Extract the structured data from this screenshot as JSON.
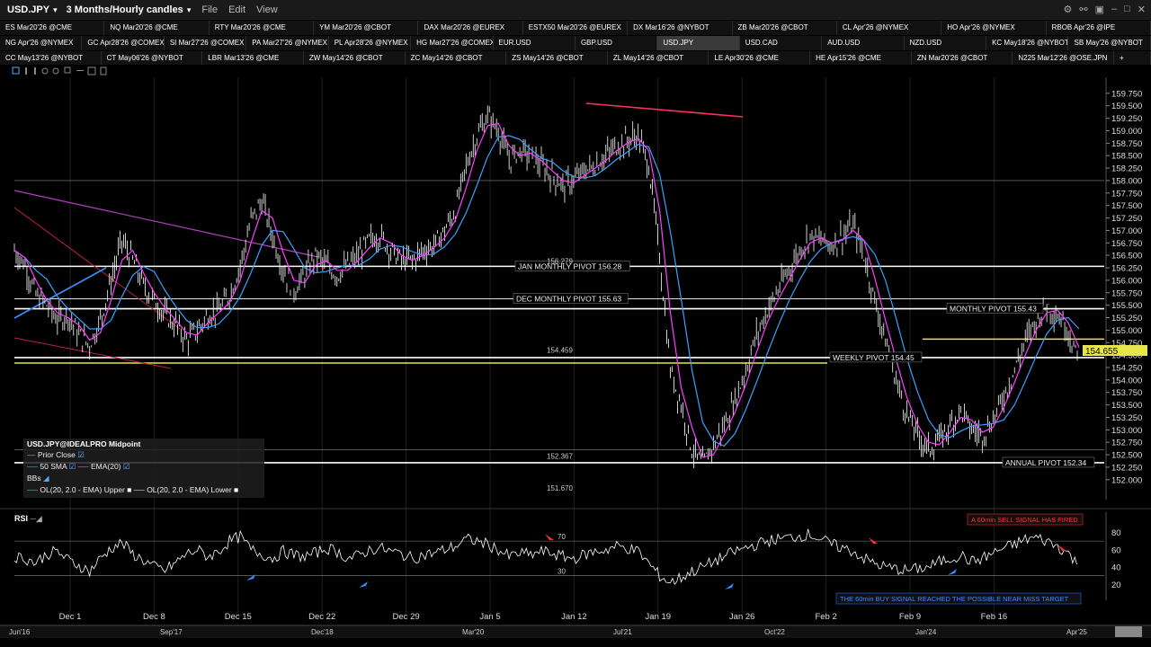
{
  "window": {
    "symbol": "USD.JPY",
    "bar_setting": "3 Months/Hourly candles",
    "menus": [
      "File",
      "Edit",
      "View"
    ]
  },
  "tab_rows": [
    [
      "ES Mar20'26 @CME",
      "NQ Mar20'26 @CME",
      "RTY Mar20'26 @CME",
      "YM Mar20'26 @CBOT",
      "DAX Mar20'26 @EUREX",
      "ESTX50 Mar20'26 @EUREX",
      "DX Mar16'26 @NYBOT",
      "ZB Mar20'26 @CBOT",
      "CL Apr'26 @NYMEX",
      "HO Apr'26 @NYMEX",
      "RBOB Apr'26 @IPE"
    ],
    [
      "NG Apr'26 @NYMEX",
      "GC Apr28'26 @COMEX",
      "SI Mar27'26 @COMEX",
      "PA Mar27'26 @NYMEX",
      "PL Apr28'26 @NYMEX",
      "HG Mar27'26 @COMEX",
      "EUR.USD",
      "GBP.USD",
      "USD.JPY",
      "USD.CAD",
      "AUD.USD",
      "NZD.USD",
      "KC May18'26 @NYBOT",
      "SB May'26 @NYBOT"
    ],
    [
      "CC May13'26 @NYBOT",
      "CT May06'26 @NYBOT",
      "LBR Mar13'26 @CME",
      "ZW May14'26 @CBOT",
      "ZC May14'26 @CBOT",
      "ZS May14'26 @CBOT",
      "ZL May14'26 @CBOT",
      "LE Apr30'26 @CME",
      "HE Apr15'26 @CME",
      "ZN Mar20'26 @CBOT",
      "N225 Mar12'26 @OSE.JPN",
      "+"
    ]
  ],
  "active_tab": "USD.JPY",
  "legend": {
    "title": "USD.JPY@IDEALPRO Midpoint",
    "prior_close": "Prior Close",
    "sma": "50 SMA",
    "ema": "EMA(20)",
    "bbs": "BBs",
    "bb_upper": "OL(20, 2.0 - EMA) Upper",
    "bb_lower": "OL(20, 2.0 - EMA) Lower"
  },
  "rsi_label": "RSI",
  "annotations": {
    "sell_signal": "A 60min SELL SIGNAL HAS FIRED",
    "buy_signal": "THE 60min BUY SIGNAL REACHED THE POSSIBLE NEAR MISS TARGET"
  },
  "colors": {
    "price_candles": "#ffffff",
    "sma50": "#3aa0ff",
    "ema20": "#ff40ff",
    "level_line": "#ffffff",
    "yellow_line": "#e6e64a",
    "trend_line": "#ff3060",
    "current_price_bg": "#e6e64a"
  },
  "chart_data": {
    "type": "line",
    "x_labels": [
      "Dec 1",
      "Dec 8",
      "Dec 15",
      "Dec 22",
      "Dec 29",
      "Jan 5",
      "Jan 12",
      "Jan 19",
      "Jan 26",
      "Feb 2",
      "Feb 9",
      "Feb 16"
    ],
    "overview_labels": [
      "Jun'16",
      "Sep'17",
      "Dec'18",
      "Mar'20",
      "Jul'21",
      "Oct'22",
      "Jan'24",
      "Apr'25"
    ],
    "y_ticks": [
      "159.750",
      "159.500",
      "159.250",
      "159.000",
      "158.750",
      "158.500",
      "158.250",
      "158.000",
      "157.750",
      "157.500",
      "157.250",
      "157.000",
      "156.750",
      "156.500",
      "156.250",
      "156.000",
      "155.750",
      "155.500",
      "155.250",
      "155.000",
      "154.750",
      "154.500",
      "154.250",
      "154.000",
      "153.750",
      "153.500",
      "153.250",
      "153.000",
      "152.750",
      "152.500",
      "152.250",
      "152.000"
    ],
    "ylim": [
      151.6,
      160.0
    ],
    "current_price": "154.655",
    "levels": [
      {
        "label": "JAN MONTHLY PIVOT 156.28",
        "value": 156.28
      },
      {
        "label": "DEC MONTHLY PIVOT 155.63",
        "value": 155.63
      },
      {
        "label": "MONTHLY PIVOT 155.43",
        "value": 155.43
      },
      {
        "label": "WEEKLY PIVOT 154.45",
        "value": 154.45
      },
      {
        "label": "ANNUAL PIVOT 152.34",
        "value": 152.34
      }
    ],
    "price_labels": [
      "156.279",
      "154.459",
      "152.367",
      "151.670"
    ],
    "series": [
      {
        "name": "USD.JPY",
        "values": [
          156.6,
          156.3,
          155.7,
          155.5,
          155.2,
          155.3,
          154.9,
          154.7,
          155.2,
          156.0,
          156.8,
          156.4,
          155.9,
          155.6,
          155.3,
          155.1,
          154.8,
          155.0,
          155.3,
          155.4,
          155.7,
          156.3,
          157.2,
          157.6,
          156.9,
          156.2,
          155.8,
          156.1,
          156.5,
          156.3,
          156.1,
          156.3,
          156.5,
          156.8,
          156.9,
          156.6,
          156.4,
          156.4,
          156.6,
          156.7,
          157.0,
          157.4,
          158.3,
          158.9,
          159.3,
          159.0,
          158.4,
          158.6,
          158.5,
          158.3,
          158.1,
          157.9,
          158.0,
          158.2,
          158.3,
          158.5,
          158.7,
          158.8,
          158.9,
          158.3,
          156.5,
          154.2,
          153.5,
          152.6,
          152.3,
          152.7,
          153.1,
          153.6,
          154.2,
          154.9,
          155.4,
          155.8,
          156.2,
          156.6,
          156.9,
          156.8,
          156.7,
          156.9,
          157.1,
          156.5,
          155.6,
          154.8,
          154.0,
          153.3,
          152.9,
          152.6,
          152.8,
          153.1,
          153.4,
          153.0,
          152.9,
          153.2,
          153.7,
          154.2,
          154.8,
          155.2,
          155.5,
          155.3,
          155.0,
          154.3
        ]
      }
    ],
    "rsi": {
      "ylim": [
        10,
        95
      ],
      "ticks": [
        80,
        60,
        40,
        20
      ],
      "levels": [
        70,
        30
      ],
      "values": [
        52,
        50,
        45,
        55,
        58,
        48,
        42,
        35,
        50,
        62,
        68,
        55,
        48,
        40,
        36,
        45,
        55,
        60,
        52,
        58,
        70,
        75,
        60,
        55,
        50,
        58,
        54,
        52,
        56,
        62,
        58,
        50,
        53,
        60,
        62,
        58,
        55,
        50,
        54,
        56,
        60,
        64,
        72,
        70,
        66,
        60,
        52,
        56,
        54,
        58,
        56,
        52,
        50,
        54,
        58,
        60,
        64,
        62,
        58,
        44,
        30,
        22,
        28,
        35,
        40,
        46,
        52,
        58,
        62,
        66,
        70,
        72,
        74,
        76,
        78,
        72,
        66,
        62,
        58,
        50,
        44,
        40,
        38,
        36,
        38,
        40,
        46,
        50,
        54,
        46,
        50,
        56,
        62,
        66,
        72,
        74,
        70,
        64,
        56,
        40
      ]
    }
  }
}
